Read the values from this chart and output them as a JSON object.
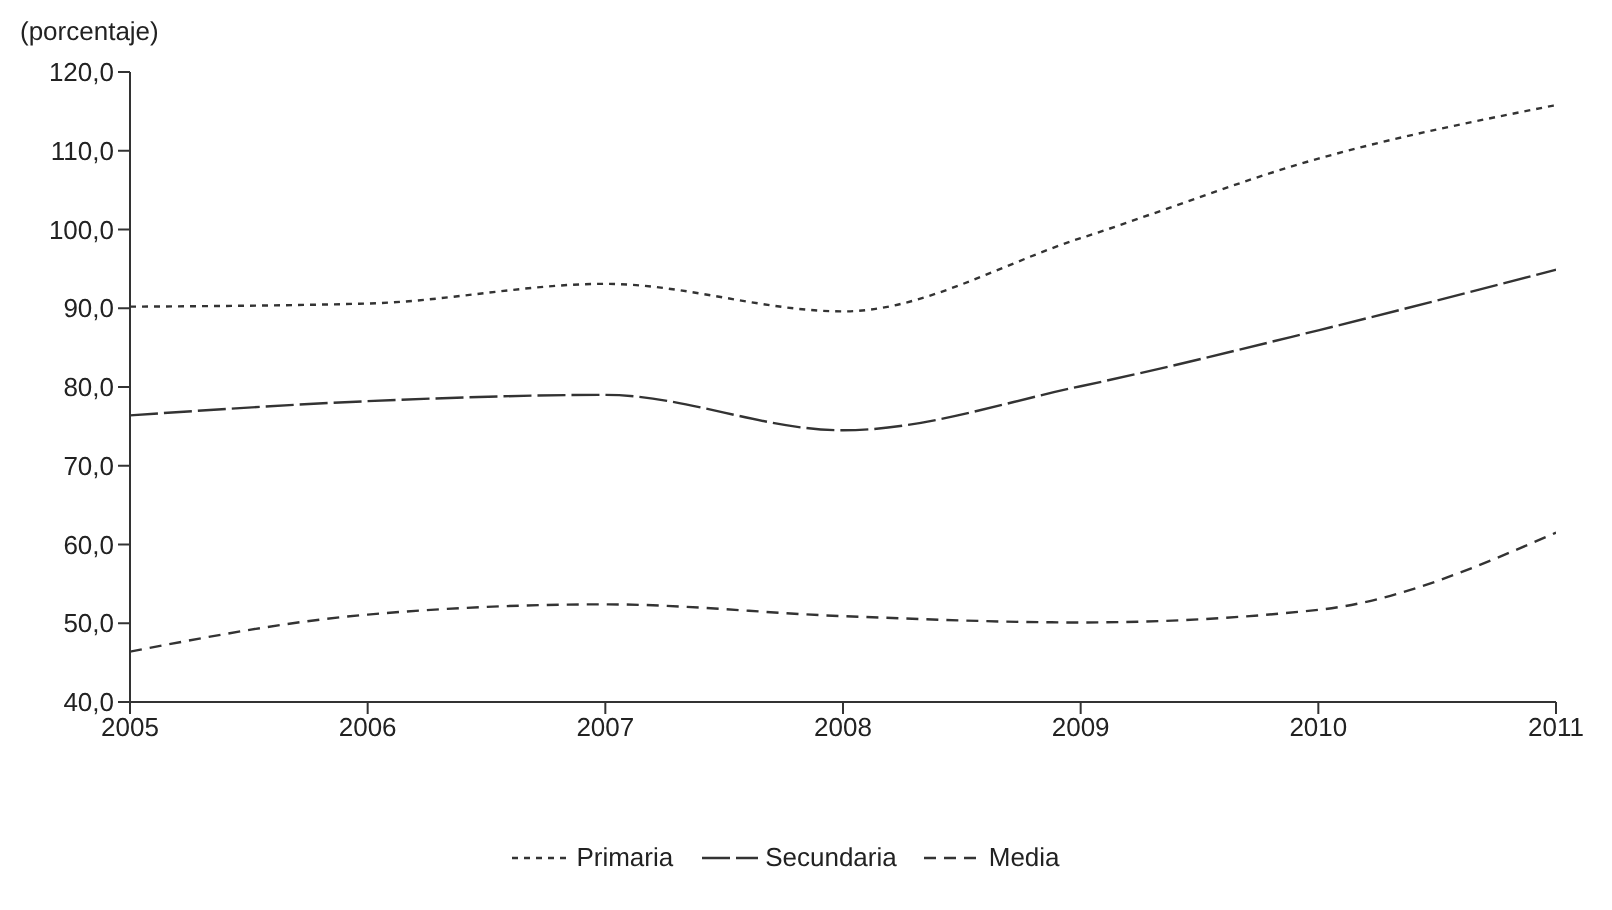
{
  "chart_data": {
    "type": "line",
    "ylabel": "(porcentaje)",
    "x": [
      2005,
      2006,
      2007,
      2008,
      2009,
      2010,
      2011
    ],
    "series": [
      {
        "name": "Primaria",
        "color": "#333333",
        "line_style": "dotted",
        "values": [
          90.2,
          90.6,
          93.1,
          89.6,
          98.9,
          109.0,
          115.8
        ]
      },
      {
        "name": "Secundaria",
        "color": "#333333",
        "line_style": "dashed",
        "values": [
          76.4,
          78.2,
          79.0,
          74.5,
          80.1,
          87.2,
          94.9
        ]
      },
      {
        "name": "Media",
        "color": "#333333",
        "line_style": "dashed",
        "values": [
          46.4,
          51.1,
          52.4,
          50.9,
          50.1,
          51.7,
          61.5
        ]
      }
    ],
    "xlim": [
      2005,
      2011
    ],
    "xticks": [
      2005,
      2006,
      2007,
      2008,
      2009,
      2010,
      2011
    ],
    "ylim": [
      40,
      120
    ],
    "yticks": [
      {
        "value": 40,
        "label": "40,0"
      },
      {
        "value": 50,
        "label": "50,0"
      },
      {
        "value": 60,
        "label": "60,0"
      },
      {
        "value": 70,
        "label": "70,0"
      },
      {
        "value": 80,
        "label": "80,0"
      },
      {
        "value": 90,
        "label": "90,0"
      },
      {
        "value": 100,
        "label": "100,0"
      },
      {
        "value": 110,
        "label": "110,0"
      },
      {
        "value": 120,
        "label": "120,0"
      }
    ],
    "grid": false,
    "legend": "bottom",
    "marker": "none"
  }
}
